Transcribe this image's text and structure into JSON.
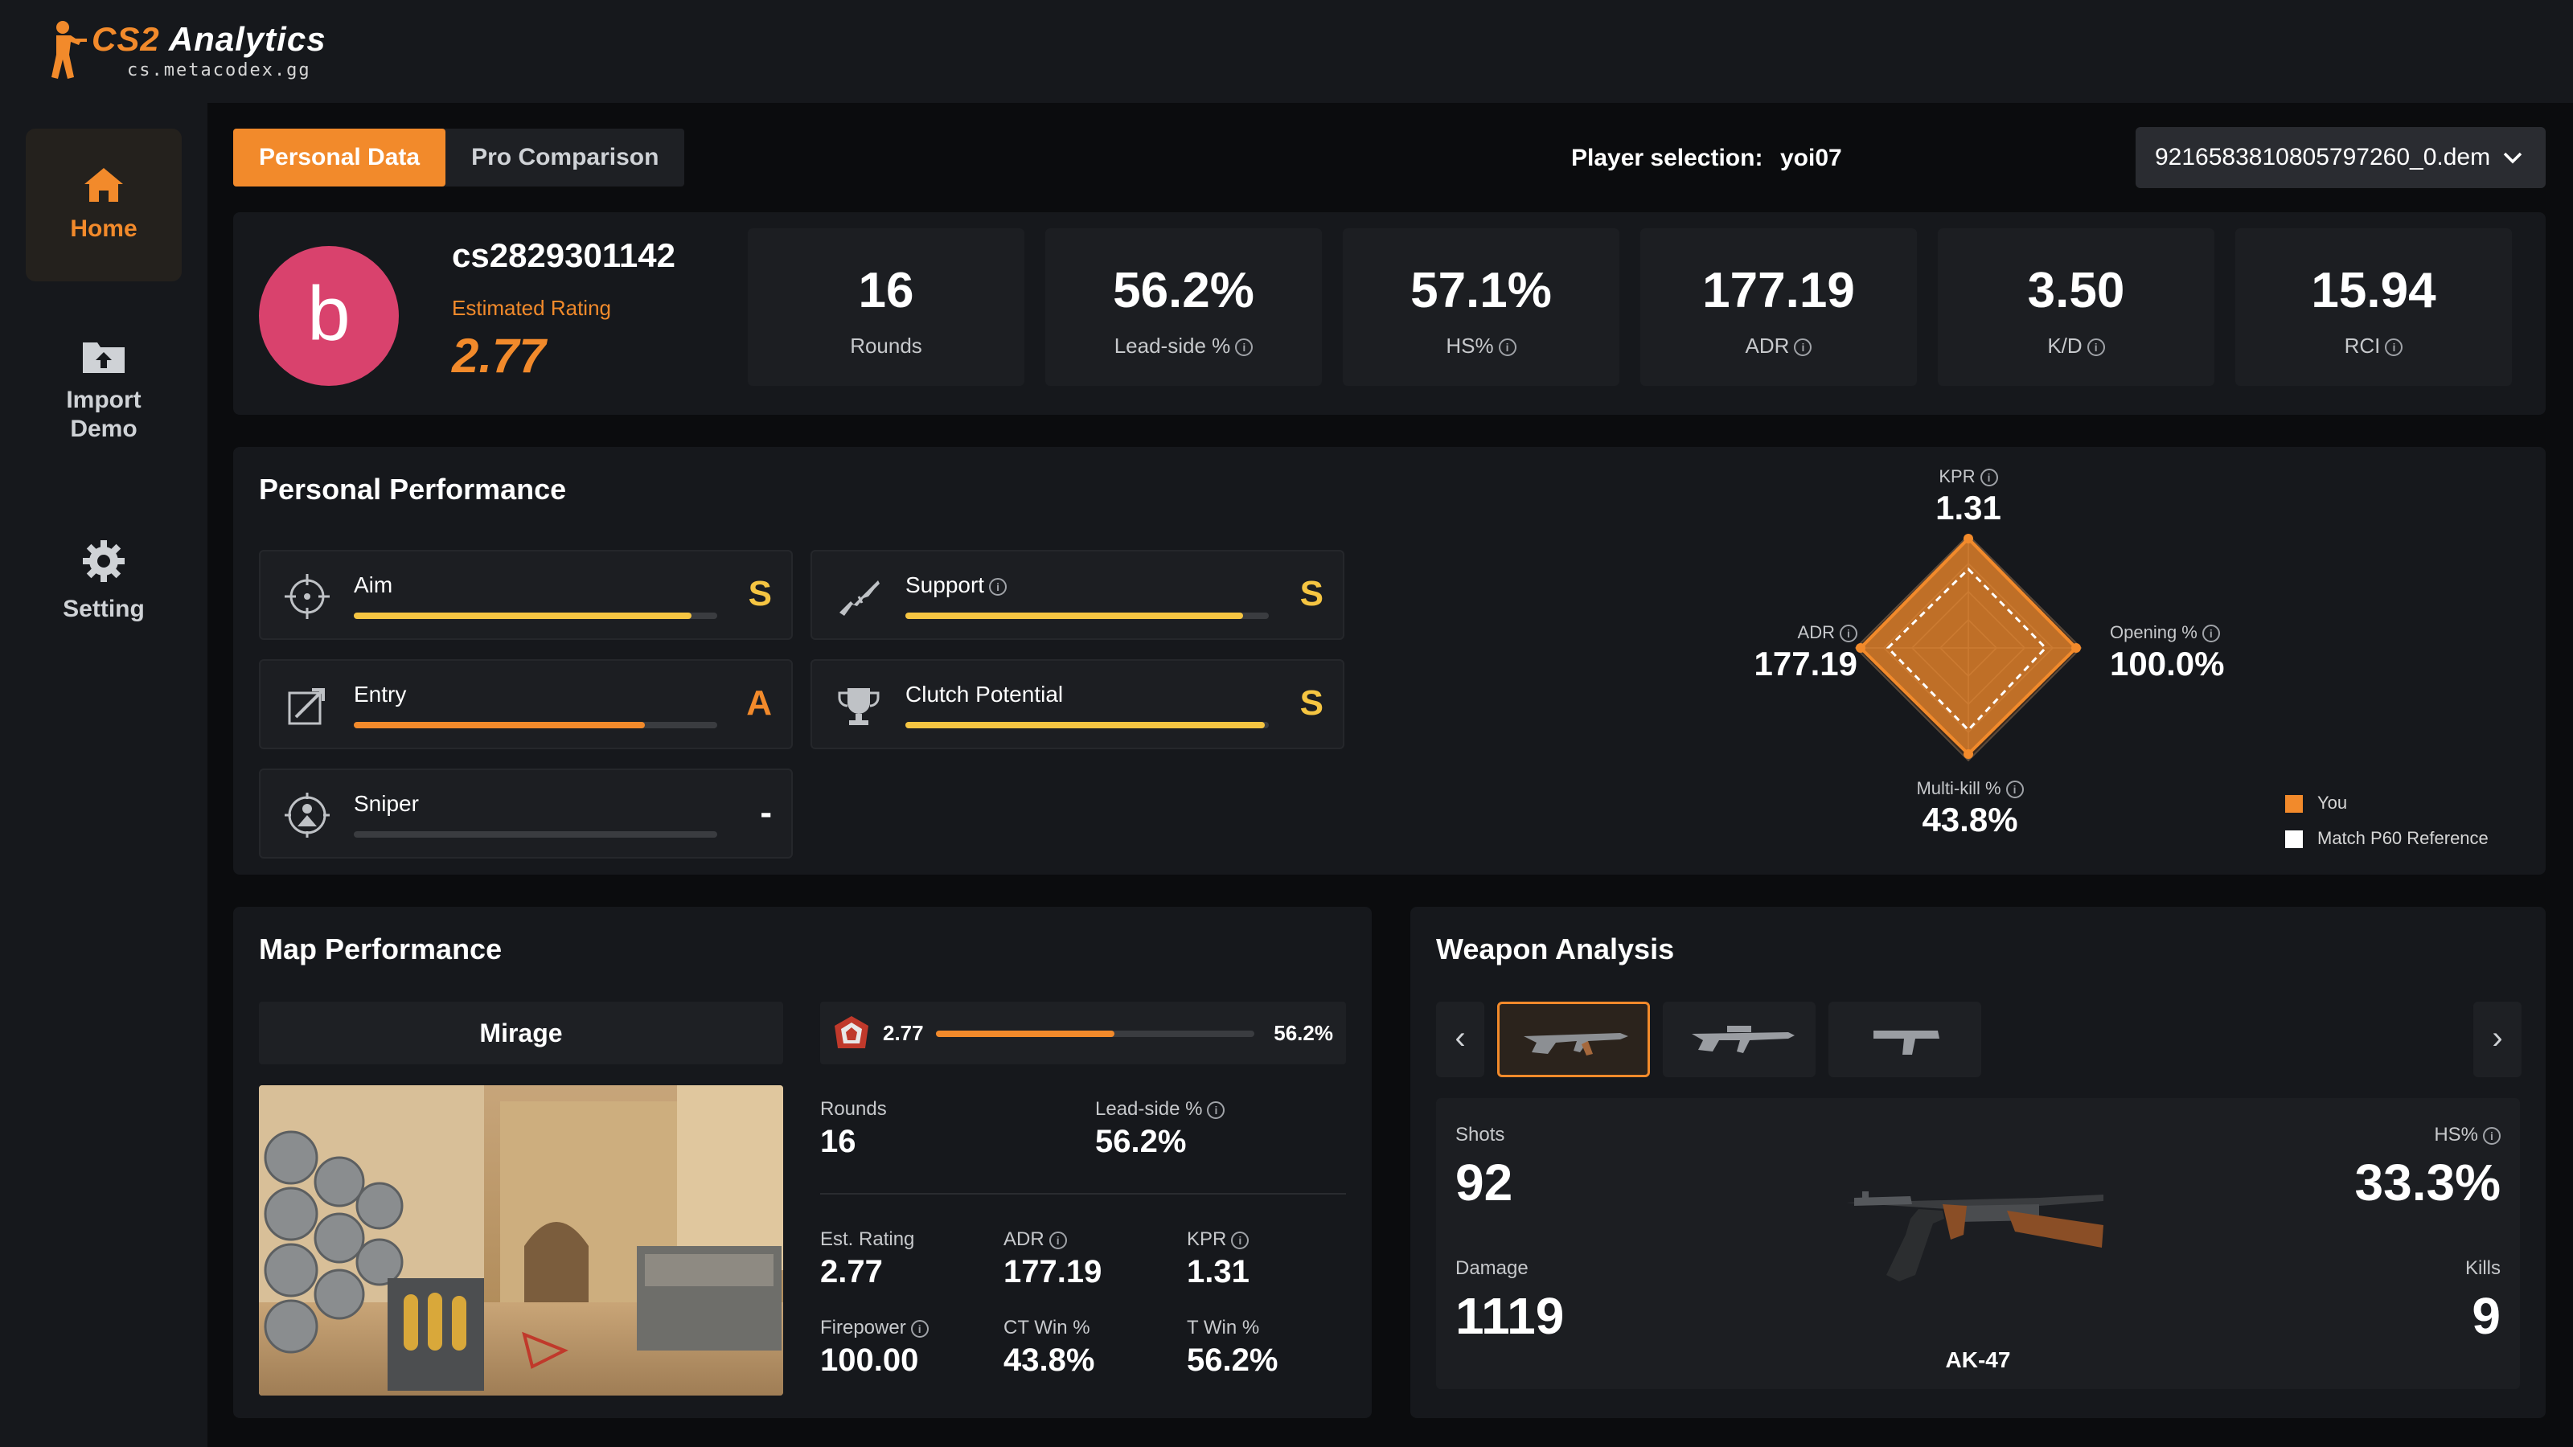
{
  "app": {
    "title_a": "CS2",
    "title_b": " Analytics",
    "subtitle": "cs.metacodex.gg"
  },
  "nav": [
    {
      "label": "Home",
      "icon": "home-icon"
    },
    {
      "label": "Import\nDemo",
      "icon": "upload-icon"
    },
    {
      "label": "Setting",
      "icon": "gear-icon"
    }
  ],
  "tabs": [
    {
      "label": "Personal Data"
    },
    {
      "label": "Pro Comparison"
    }
  ],
  "player_selection": {
    "label": "Player selection:",
    "value": "yoi07"
  },
  "demo_file": "9216583810805797260_0.dem",
  "profile": {
    "avatar_letter": "b",
    "avatar_color": "#d9426d",
    "name": "cs2829301142",
    "rating_label": "Estimated Rating",
    "rating": "2.77"
  },
  "stats": [
    {
      "value": "16",
      "label": "Rounds"
    },
    {
      "value": "56.2%",
      "label": "Lead-side %"
    },
    {
      "value": "57.1%",
      "label": "HS%"
    },
    {
      "value": "177.19",
      "label": "ADR"
    },
    {
      "value": "3.50",
      "label": "K/D"
    },
    {
      "value": "15.94",
      "label": "RCI"
    }
  ],
  "personal_performance": {
    "title": "Personal Performance",
    "skills": [
      {
        "name": "Aim",
        "grade": "S",
        "level": 0.93,
        "color": "#f5c542",
        "icon": "crosshair-icon"
      },
      {
        "name": "Support",
        "grade": "S",
        "level": 0.93,
        "color": "#f5c542",
        "icon": "rifle-icon"
      },
      {
        "name": "Entry",
        "grade": "A",
        "level": 0.8,
        "color": "#f28a2b",
        "icon": "entry-icon"
      },
      {
        "name": "Clutch Potential",
        "grade": "S",
        "level": 0.99,
        "color": "#f5c542",
        "icon": "trophy-icon"
      },
      {
        "name": "Sniper",
        "grade": "-",
        "level": 0,
        "color": "#3a3c40",
        "icon": "scope-icon"
      }
    ],
    "radar": {
      "kpr": {
        "label": "KPR",
        "value": "1.31"
      },
      "adr": {
        "label": "ADR",
        "value": "177.19"
      },
      "opening": {
        "label": "Opening %",
        "value": "100.0%"
      },
      "multikill": {
        "label": "Multi-kill %",
        "value": "43.8%"
      }
    },
    "legend": [
      {
        "label": "You",
        "color": "#f28a2b"
      },
      {
        "label": "Match P60 Reference",
        "color": "#ffffff"
      }
    ]
  },
  "map_performance": {
    "title": "Map Performance",
    "map": "Mirage",
    "rating": "2.77",
    "lead_side": "56.2%",
    "lead_level": 0.56,
    "rounds": {
      "label": "Rounds",
      "value": "16"
    },
    "lead_side_stat": {
      "label": "Lead-side %",
      "value": "56.2%"
    },
    "est_rating": {
      "label": "Est. Rating",
      "value": "2.77"
    },
    "adr": {
      "label": "ADR",
      "value": "177.19"
    },
    "kpr": {
      "label": "KPR",
      "value": "1.31"
    },
    "firepower": {
      "label": "Firepower",
      "value": "100.00"
    },
    "ct_win": {
      "label": "CT Win %",
      "value": "43.8%"
    },
    "t_win": {
      "label": "T Win %",
      "value": "56.2%"
    }
  },
  "weapon_analysis": {
    "title": "Weapon Analysis",
    "weapon": "AK-47",
    "shots": {
      "label": "Shots",
      "value": "92"
    },
    "hs": {
      "label": "HS%",
      "value": "33.3%"
    },
    "damage": {
      "label": "Damage",
      "value": "1119"
    },
    "kills": {
      "label": "Kills",
      "value": "9"
    }
  }
}
